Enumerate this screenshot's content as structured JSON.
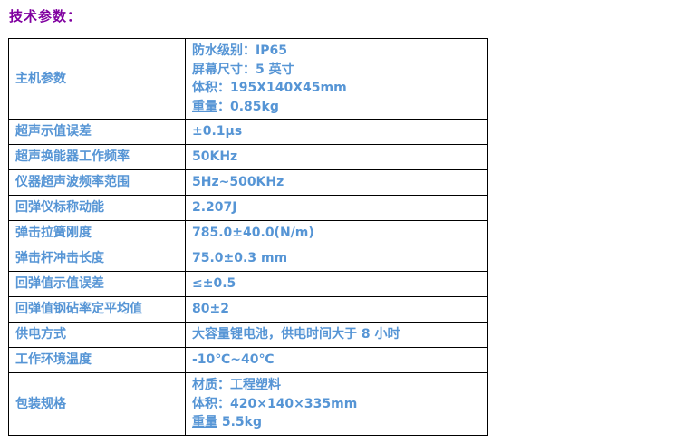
{
  "page_title": "技术参数：",
  "colors": {
    "title": "#8000A0",
    "cell_text": "#5695D5",
    "border": "#000000",
    "background": "#FFFFFF"
  },
  "table": {
    "rows": [
      {
        "label": "主机参数",
        "lines": [
          [
            {
              "text": "防水级别：IP65"
            }
          ],
          [
            {
              "text": "屏幕尺寸：5 英寸"
            }
          ],
          [
            {
              "text": "体积：195X140X45mm"
            }
          ],
          [
            {
              "text": "重量",
              "underline": true
            },
            {
              "text": "：0.85kg"
            }
          ]
        ]
      },
      {
        "label": "超声示值误差",
        "lines": [
          [
            {
              "text": "±0.1μs"
            }
          ]
        ]
      },
      {
        "label": "超声换能器工作频率",
        "lines": [
          [
            {
              "text": "50KHz"
            }
          ]
        ]
      },
      {
        "label": "仪器超声波频率范围",
        "lines": [
          [
            {
              "text": "5Hz~500KHz"
            }
          ]
        ]
      },
      {
        "label": "回弹仪标称动能",
        "lines": [
          [
            {
              "text": "2.207J"
            }
          ]
        ]
      },
      {
        "label": "弹击拉簧刚度",
        "lines": [
          [
            {
              "text": "785.0±40.0(N/m)"
            }
          ]
        ]
      },
      {
        "label": "弹击杆冲击长度",
        "lines": [
          [
            {
              "text": "75.0±0.3 mm"
            }
          ]
        ]
      },
      {
        "label": "回弹值示值误差",
        "lines": [
          [
            {
              "text": "≤±0.5"
            }
          ]
        ]
      },
      {
        "label": "回弹值钢砧率定平均值",
        "lines": [
          [
            {
              "text": "80±2"
            }
          ]
        ]
      },
      {
        "label": "供电方式",
        "lines": [
          [
            {
              "text": "大容量锂电池，供电时间大于 8 小时"
            }
          ]
        ]
      },
      {
        "label": "工作环境温度",
        "lines": [
          [
            {
              "text": "-10℃~40℃"
            }
          ]
        ]
      },
      {
        "label": "包装规格",
        "lines": [
          [
            {
              "text": "材质：工程塑料"
            }
          ],
          [
            {
              "text": "体积：420×140×335mm"
            }
          ],
          [
            {
              "text": "重量",
              "underline": true
            },
            {
              "text": " 5.5kg"
            }
          ]
        ]
      }
    ]
  }
}
